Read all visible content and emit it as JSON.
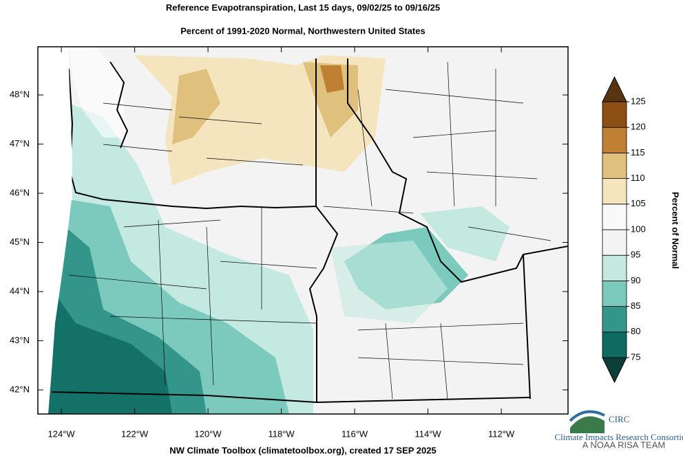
{
  "header": {
    "title": "Reference Evapotranspiration, Last 15 days, 09/02/25 to 09/16/25",
    "subtitle": "Percent of 1991-2020 Normal, Northwestern United States"
  },
  "map": {
    "xlim": [
      -124.64,
      -110.18
    ],
    "ylim": [
      41.51,
      48.98
    ],
    "xticks": [
      {
        "value": -124,
        "label": "124°W"
      },
      {
        "value": -122,
        "label": "122°W"
      },
      {
        "value": -120,
        "label": "120°W"
      },
      {
        "value": -118,
        "label": "118°W"
      },
      {
        "value": -116,
        "label": "116°W"
      },
      {
        "value": -114,
        "label": "114°W"
      },
      {
        "value": -112,
        "label": "112°W"
      }
    ],
    "yticks": [
      {
        "value": 42,
        "label": "42°N"
      },
      {
        "value": 43,
        "label": "43°N"
      },
      {
        "value": 44,
        "label": "44°N"
      },
      {
        "value": 45,
        "label": "45°N"
      },
      {
        "value": 46,
        "label": "46°N"
      },
      {
        "value": 47,
        "label": "47°N"
      },
      {
        "value": 48,
        "label": "48°N"
      }
    ]
  },
  "colorbar": {
    "title": "Percent of Normal",
    "ticks": [
      75,
      80,
      85,
      90,
      95,
      100,
      105,
      110,
      115,
      120,
      125
    ],
    "colors": [
      "#0b3f37",
      "#0f6b62",
      "#34958b",
      "#7ccabd",
      "#c4e9e1",
      "#f4f4f4",
      "#f9f9f9",
      "#f5e5bf",
      "#dfc07c",
      "#c08033",
      "#8d4f14",
      "#583411"
    ]
  },
  "footer": "NW Climate Toolbox (climatetoolbox.org), created 17 SEP 2025",
  "logo": {
    "name": "CIRC",
    "subtitle": "Climate Impacts Research Consortium",
    "tagline": "A NOAA RISA TEAM"
  }
}
